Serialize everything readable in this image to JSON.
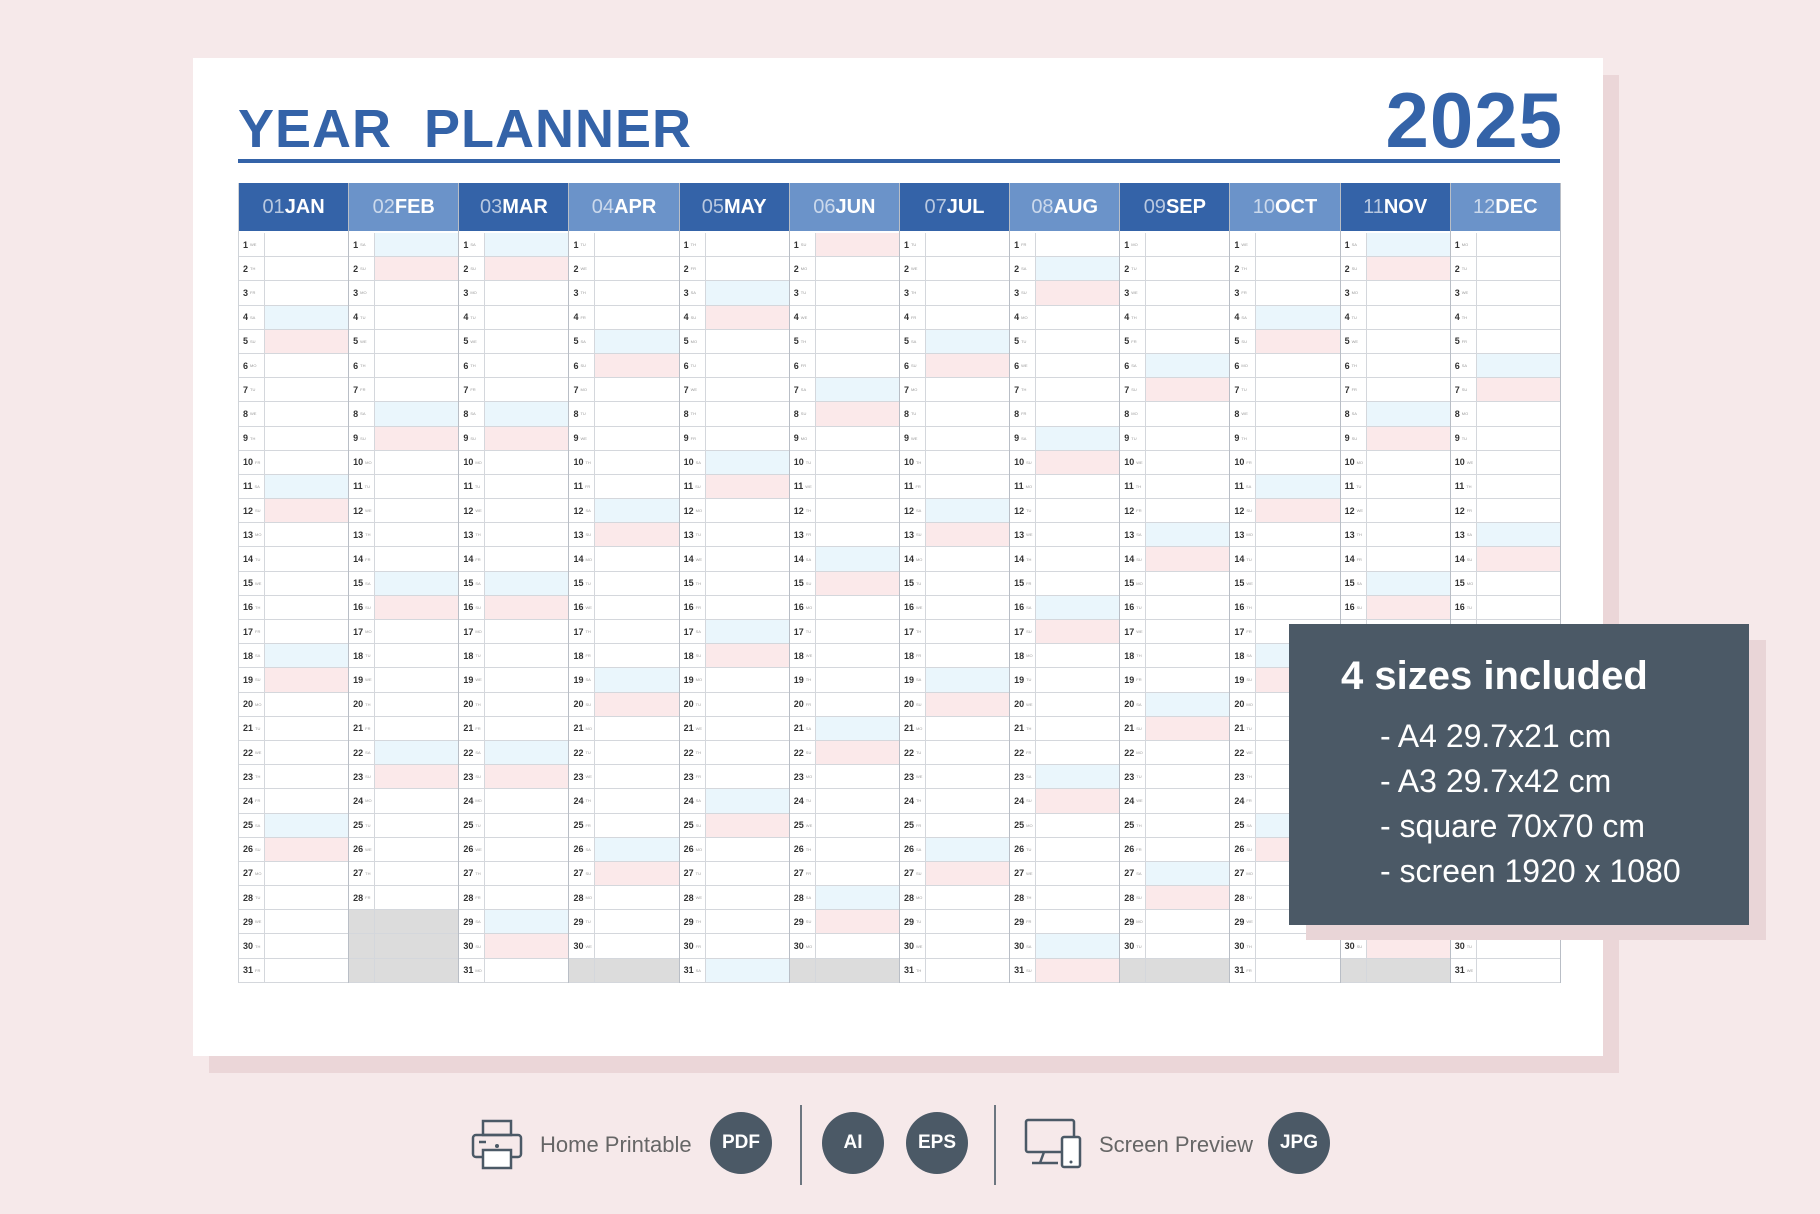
{
  "planner": {
    "title": "YEAR  PLANNER",
    "year": "2025",
    "months": [
      {
        "num": "01",
        "abbr": "JAN",
        "start": 3,
        "days": 31
      },
      {
        "num": "02",
        "abbr": "FEB",
        "start": 6,
        "days": 28
      },
      {
        "num": "03",
        "abbr": "MAR",
        "start": 6,
        "days": 31
      },
      {
        "num": "04",
        "abbr": "APR",
        "start": 2,
        "days": 30
      },
      {
        "num": "05",
        "abbr": "MAY",
        "start": 4,
        "days": 31
      },
      {
        "num": "06",
        "abbr": "JUN",
        "start": 0,
        "days": 30
      },
      {
        "num": "07",
        "abbr": "JUL",
        "start": 2,
        "days": 31
      },
      {
        "num": "08",
        "abbr": "AUG",
        "start": 5,
        "days": 31
      },
      {
        "num": "09",
        "abbr": "SEP",
        "start": 1,
        "days": 30
      },
      {
        "num": "10",
        "abbr": "OCT",
        "start": 3,
        "days": 31
      },
      {
        "num": "11",
        "abbr": "NOV",
        "start": 6,
        "days": 30
      },
      {
        "num": "12",
        "abbr": "DEC",
        "start": 1,
        "days": 31
      }
    ],
    "weekday_abbr": [
      "SU",
      "MO",
      "TU",
      "WE",
      "TH",
      "FR",
      "SA"
    ]
  },
  "sizes_panel": {
    "title": "4 sizes included",
    "items": [
      "- A4 29.7x21 cm",
      "- A3 29.7x42 cm",
      "- square 70x70 cm",
      "- screen 1920 x 1080"
    ]
  },
  "footer": {
    "home_printable": "Home Printable",
    "pdf": "PDF",
    "ai": "AI",
    "eps": "EPS",
    "screen_preview": "Screen Preview",
    "jpg": "JPG"
  },
  "colors": {
    "brand_blue": "#3463a8",
    "header_light": "#6b93c9",
    "saturday": "#eaf6fc",
    "sunday": "#fbe9ea",
    "panel": "#4b5966",
    "background": "#f6e9ea"
  }
}
